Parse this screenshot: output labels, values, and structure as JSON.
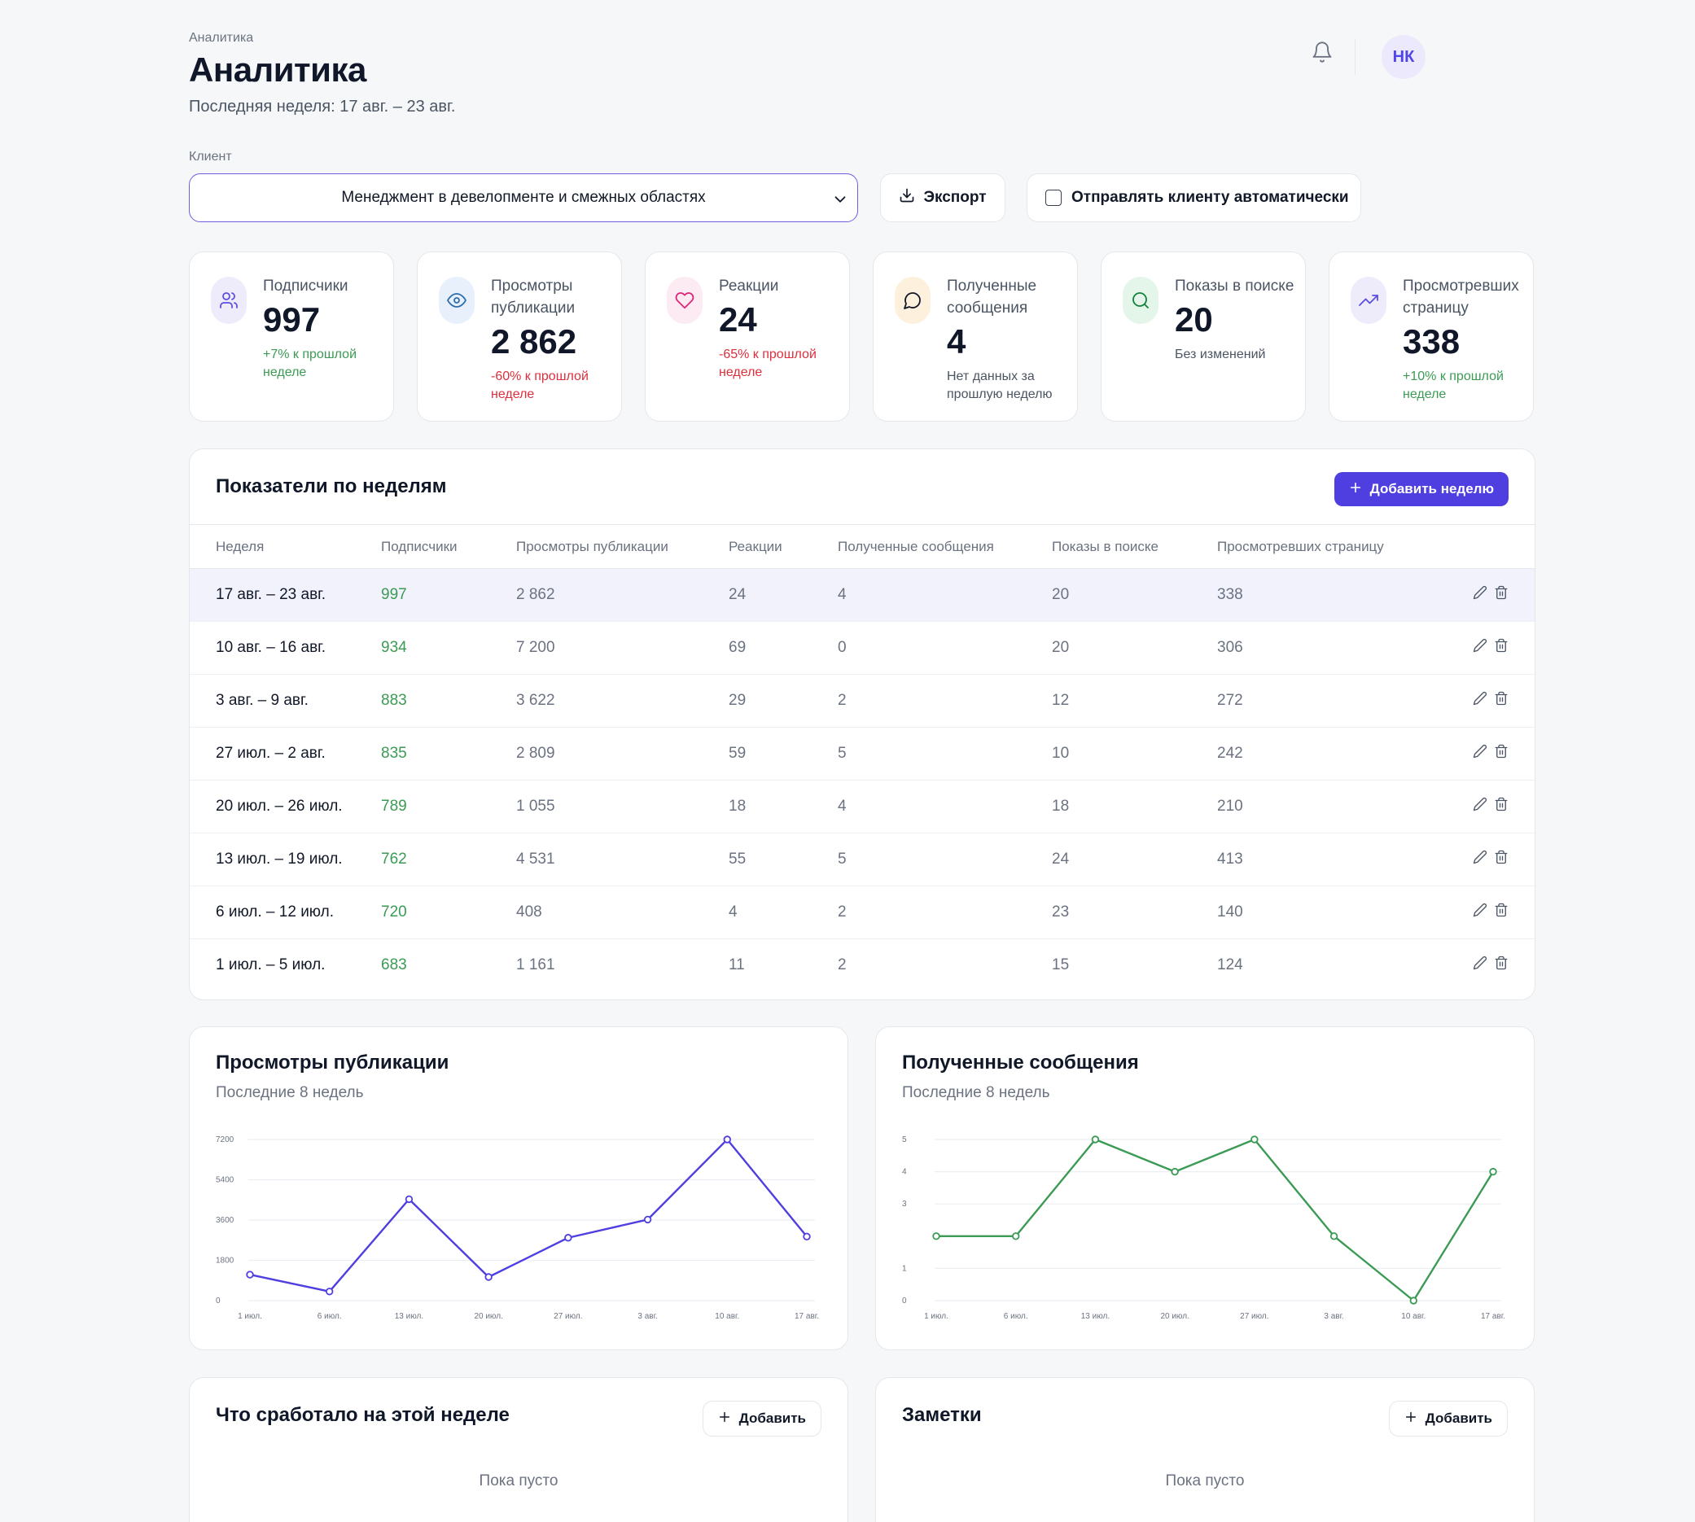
{
  "header": {
    "breadcrumb": "Аналитика",
    "title": "Аналитика",
    "period": "Последняя неделя: 17 авг. – 23 авг.",
    "avatar_initials": "НК"
  },
  "filters": {
    "client_label": "Клиент",
    "client_value": "Менеджмент в девелопменте и смежных областях",
    "export_label": "Экспорт",
    "auto_send_label": "Отправлять клиенту автоматически",
    "auto_send_checked": false
  },
  "kpis": [
    {
      "label": "Подписчики",
      "value": "997",
      "delta": "+7% к прошлой неделе",
      "trend": "up",
      "icon": "users-icon",
      "color": "#5b4ee0"
    },
    {
      "label": "Просмотры публикации",
      "value": "2 862",
      "delta": "-60% к прошлой неделе",
      "trend": "down",
      "icon": "eye-icon",
      "color": "#2b6cb0"
    },
    {
      "label": "Реакции",
      "value": "24",
      "delta": "-65% к прошлой неделе",
      "trend": "down",
      "icon": "heart-icon",
      "color": "#db2777"
    },
    {
      "label": "Полученные сообщения",
      "value": "4",
      "delta": "Нет данных за прошлую неделю",
      "trend": "none",
      "icon": "message-icon",
      "color": "#b45309"
    },
    {
      "label": "Показы в поиске",
      "value": "20",
      "delta": "Без изменений",
      "trend": "none",
      "icon": "search-icon",
      "color": "#15803d"
    },
    {
      "label": "Просмотревших страницу",
      "value": "338",
      "delta": "+10% к прошлой неделе",
      "trend": "up",
      "icon": "trending-up-icon",
      "color": "#5b4ee0"
    }
  ],
  "weekly": {
    "title": "Показатели по неделям",
    "add_week_label": "Добавить неделю",
    "columns": [
      "Неделя",
      "Подписчики",
      "Просмотры публикации",
      "Реакции",
      "Полученные сообщения",
      "Показы в поиске",
      "Просмотревших страницу"
    ],
    "rows": [
      [
        "17 авг. – 23 авг.",
        "997",
        "2 862",
        "24",
        "4",
        "20",
        "338"
      ],
      [
        "10 авг. – 16 авг.",
        "934",
        "7 200",
        "69",
        "0",
        "20",
        "306"
      ],
      [
        "3 авг. – 9 авг.",
        "883",
        "3 622",
        "29",
        "2",
        "12",
        "272"
      ],
      [
        "27 июл. – 2 авг.",
        "835",
        "2 809",
        "59",
        "5",
        "10",
        "242"
      ],
      [
        "20 июл. – 26 июл.",
        "789",
        "1 055",
        "18",
        "4",
        "18",
        "210"
      ],
      [
        "13 июл. – 19 июл.",
        "762",
        "4 531",
        "55",
        "5",
        "24",
        "413"
      ],
      [
        "6 июл. – 12 июл.",
        "720",
        "408",
        "4",
        "2",
        "23",
        "140"
      ],
      [
        "1 июл. – 5 июл.",
        "683",
        "1 161",
        "11",
        "2",
        "15",
        "124"
      ]
    ]
  },
  "chart_data": [
    {
      "type": "line",
      "title": "Просмотры публикации",
      "subtitle": "Последние 8 недель",
      "x": [
        "1 июл.",
        "6 июл.",
        "13 июл.",
        "20 июл.",
        "27 июл.",
        "3 авг.",
        "10 авг.",
        "17 авг."
      ],
      "values": [
        1161,
        408,
        4531,
        1055,
        2809,
        3622,
        7200,
        2862
      ],
      "yticks": [
        0,
        1800,
        3600,
        5400,
        7200
      ],
      "ylim": [
        0,
        7200
      ],
      "grid": true,
      "color": "#4f3ee0"
    },
    {
      "type": "line",
      "title": "Полученные сообщения",
      "subtitle": "Последние 8 недель",
      "x": [
        "1 июл.",
        "6 июл.",
        "13 июл.",
        "20 июл.",
        "27 июл.",
        "3 авг.",
        "10 авг.",
        "17 авг."
      ],
      "values": [
        2,
        2,
        5,
        4,
        5,
        2,
        0,
        4
      ],
      "yticks": [
        0,
        1,
        3,
        4,
        5
      ],
      "ylim": [
        0,
        5
      ],
      "grid": true,
      "color": "#3b9b54"
    }
  ],
  "worked": {
    "title": "Что сработало на этой неделе",
    "add_label": "Добавить",
    "empty": "Пока пусто"
  },
  "notes": {
    "title": "Заметки",
    "add_label": "Добавить",
    "empty": "Пока пусто"
  }
}
